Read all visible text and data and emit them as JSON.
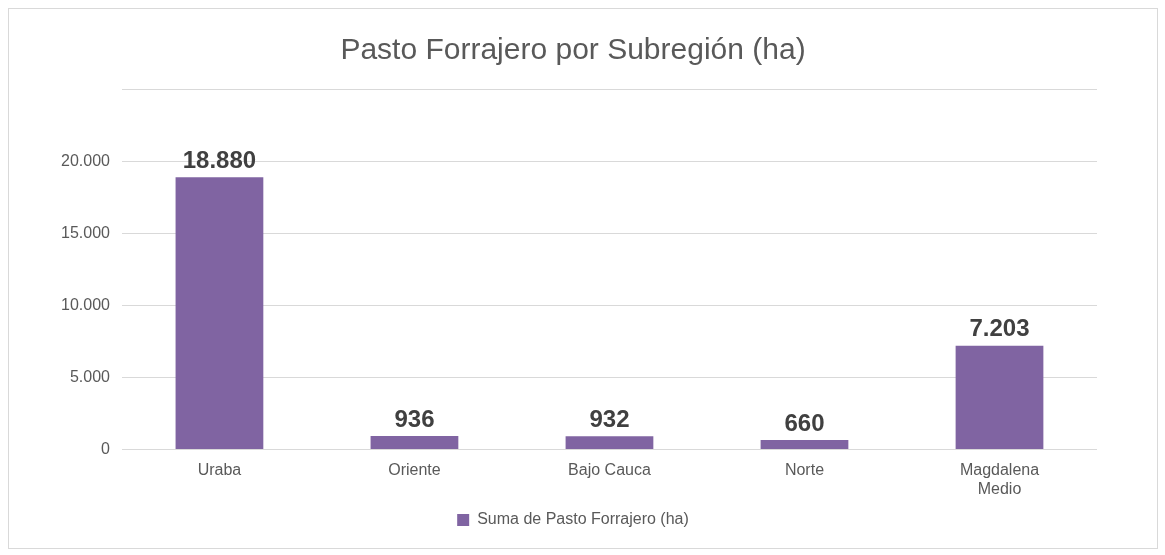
{
  "chart_data": {
    "type": "bar",
    "title": "Pasto Forrajero por Subregión (ha)",
    "categories": [
      "Uraba",
      "Oriente",
      "Bajo Cauca",
      "Norte",
      "Magdalena Medio"
    ],
    "series": [
      {
        "name": "Suma de Pasto Forrajero (ha)",
        "color": "#8064a2",
        "values": [
          18880,
          936,
          932,
          660,
          7203
        ],
        "value_labels": [
          "18.880",
          "936",
          "932",
          "660",
          "7.203"
        ]
      }
    ],
    "ylim": [
      0,
      25000
    ],
    "yticks": [
      {
        "value": 0,
        "label": "0"
      },
      {
        "value": 5000,
        "label": "5.000"
      },
      {
        "value": 10000,
        "label": "10.000"
      },
      {
        "value": 15000,
        "label": "15.000"
      },
      {
        "value": 20000,
        "label": "20.000"
      },
      {
        "value": 25000,
        "label": null
      }
    ],
    "grid": "y",
    "legend": "bottom"
  }
}
